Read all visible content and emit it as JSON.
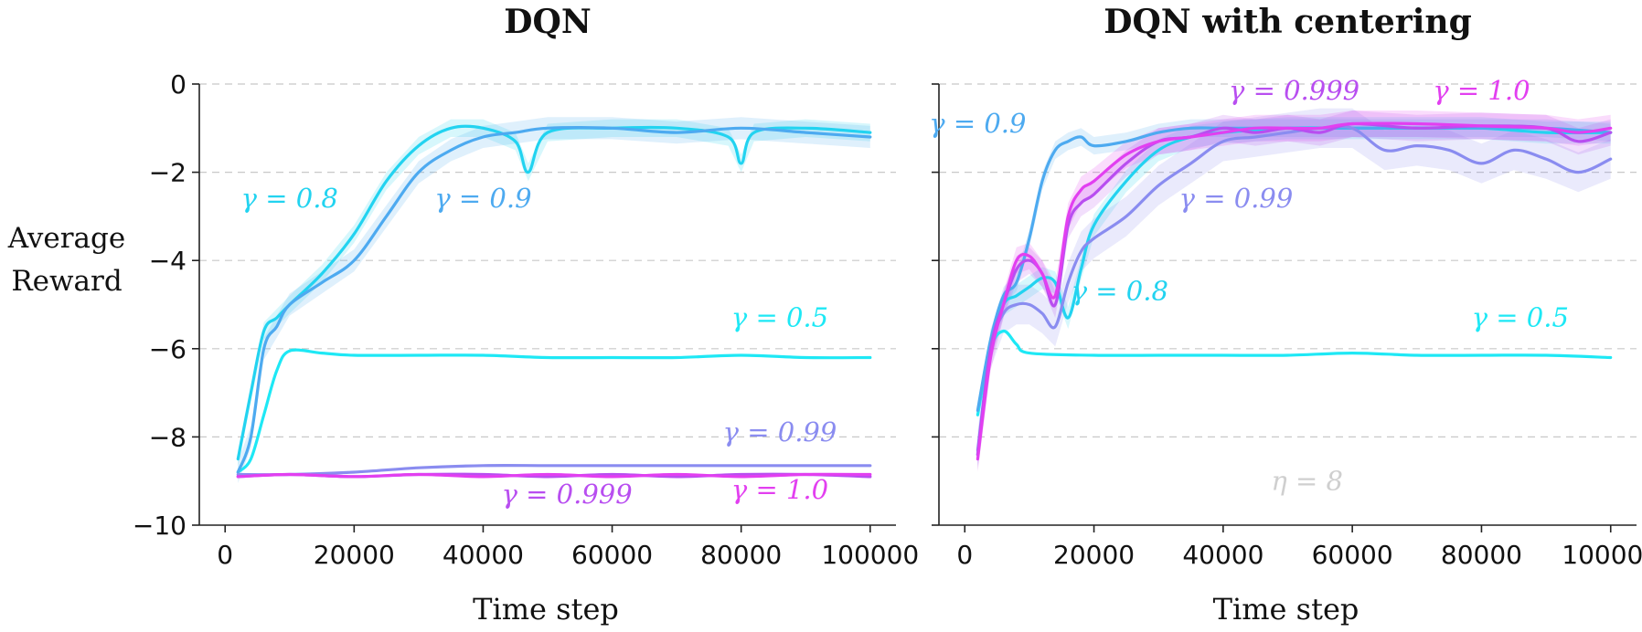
{
  "figure": {
    "ylabel_line1": "Average",
    "ylabel_line2": "Reward"
  },
  "chart_data": [
    {
      "type": "line",
      "title": "DQN",
      "xlabel": "Time step",
      "ylabel": "Average Reward",
      "xlim": [
        -4000,
        104000
      ],
      "ylim": [
        -10,
        0
      ],
      "xticks": [
        0,
        20000,
        40000,
        60000,
        80000,
        100000
      ],
      "xtick_labels": [
        "0",
        "20000",
        "40000",
        "60000",
        "80000",
        "100000"
      ],
      "yticks": [
        0,
        -2,
        -4,
        -6,
        -8,
        -10
      ],
      "ytick_labels": [
        "0",
        "−2",
        "−4",
        "−6",
        "−8",
        "−10"
      ],
      "grid": "horizontal dashed",
      "series": [
        {
          "name": "γ = 0.5",
          "color": "#1ee8f5",
          "x": [
            2000,
            4000,
            6000,
            8000,
            10000,
            15000,
            20000,
            30000,
            40000,
            50000,
            60000,
            70000,
            80000,
            90000,
            100000
          ],
          "y": [
            -8.8,
            -8.5,
            -7.5,
            -6.5,
            -6.05,
            -6.1,
            -6.15,
            -6.15,
            -6.15,
            -6.2,
            -6.2,
            -6.2,
            -6.15,
            -6.2,
            -6.2
          ]
        },
        {
          "name": "γ = 0.8",
          "color": "#22d3f0",
          "x": [
            2000,
            4000,
            6000,
            8000,
            10000,
            15000,
            20000,
            25000,
            30000,
            35000,
            40000,
            45000,
            47000,
            50000,
            60000,
            70000,
            78000,
            80000,
            82000,
            90000,
            100000
          ],
          "y": [
            -8.5,
            -7.0,
            -5.6,
            -5.3,
            -5.0,
            -4.3,
            -3.4,
            -2.2,
            -1.4,
            -1.0,
            -1.0,
            -1.3,
            -2.0,
            -1.1,
            -1.0,
            -1.0,
            -1.2,
            -1.8,
            -1.1,
            -1.0,
            -1.1
          ],
          "band": 0.2
        },
        {
          "name": "γ = 0.9",
          "color": "#4daaf0",
          "x": [
            2000,
            4000,
            6000,
            8000,
            10000,
            15000,
            20000,
            25000,
            30000,
            35000,
            40000,
            45000,
            50000,
            60000,
            70000,
            80000,
            90000,
            100000
          ],
          "y": [
            -8.8,
            -8.0,
            -6.0,
            -5.5,
            -5.0,
            -4.5,
            -4.0,
            -3.0,
            -2.0,
            -1.5,
            -1.2,
            -1.1,
            -1.0,
            -1.0,
            -1.1,
            -1.0,
            -1.1,
            -1.2
          ],
          "band": 0.25
        },
        {
          "name": "γ = 0.99",
          "color": "#8a8cf0",
          "x": [
            2000,
            10000,
            20000,
            30000,
            40000,
            50000,
            60000,
            70000,
            80000,
            90000,
            100000
          ],
          "y": [
            -8.85,
            -8.85,
            -8.8,
            -8.7,
            -8.65,
            -8.65,
            -8.65,
            -8.65,
            -8.65,
            -8.65,
            -8.65
          ]
        },
        {
          "name": "γ = 0.999",
          "color": "#b84ef0",
          "x": [
            2000,
            10000,
            20000,
            30000,
            40000,
            50000,
            60000,
            70000,
            80000,
            90000,
            100000
          ],
          "y": [
            -8.9,
            -8.85,
            -8.9,
            -8.85,
            -8.85,
            -8.9,
            -8.85,
            -8.9,
            -8.85,
            -8.85,
            -8.9
          ]
        },
        {
          "name": "γ = 1.0",
          "color": "#e23ff0",
          "x": [
            2000,
            10000,
            20000,
            30000,
            40000,
            50000,
            60000,
            70000,
            80000,
            90000,
            100000
          ],
          "y": [
            -8.9,
            -8.85,
            -8.9,
            -8.85,
            -8.9,
            -8.85,
            -8.9,
            -8.85,
            -8.9,
            -8.85,
            -8.85
          ]
        }
      ],
      "annotations": [
        {
          "text": "γ = 0.8",
          "color": "#22d3f0",
          "x": 10000,
          "y": -2.8
        },
        {
          "text": "γ = 0.9",
          "color": "#4daaf0",
          "x": 40000,
          "y": -2.8
        },
        {
          "text": "γ = 0.5",
          "color": "#1ee8f5",
          "x": 86000,
          "y": -5.5
        },
        {
          "text": "γ = 0.99",
          "color": "#8a8cf0",
          "x": 86000,
          "y": -8.1
        },
        {
          "text": "γ = 0.999",
          "color": "#b84ef0",
          "x": 53000,
          "y": -9.5
        },
        {
          "text": "γ = 1.0",
          "color": "#e23ff0",
          "x": 86000,
          "y": -9.4
        }
      ]
    },
    {
      "type": "line",
      "title": "DQN with centering",
      "xlabel": "Time step",
      "ylabel": "",
      "xlim": [
        -4000,
        104000
      ],
      "ylim": [
        -10,
        0
      ],
      "xticks": [
        0,
        20000,
        40000,
        60000,
        80000,
        100000
      ],
      "xtick_labels": [
        "0",
        "20000",
        "40000",
        "60000",
        "80000",
        "100000"
      ],
      "yticks": [
        0,
        -2,
        -4,
        -6,
        -8,
        -10
      ],
      "ytick_labels": [
        "",
        "",
        "",
        "",
        "",
        ""
      ],
      "grid": "horizontal dashed",
      "series": [
        {
          "name": "γ = 0.5",
          "color": "#1ee8f5",
          "x": [
            2000,
            4000,
            6000,
            8000,
            10000,
            20000,
            30000,
            40000,
            50000,
            60000,
            70000,
            80000,
            90000,
            100000
          ],
          "y": [
            -7.5,
            -6.0,
            -5.6,
            -5.9,
            -6.1,
            -6.15,
            -6.15,
            -6.15,
            -6.15,
            -6.1,
            -6.15,
            -6.15,
            -6.15,
            -6.2
          ]
        },
        {
          "name": "γ = 0.8",
          "color": "#22d3f0",
          "x": [
            2000,
            4000,
            6000,
            8000,
            10000,
            12000,
            14000,
            16000,
            18000,
            20000,
            25000,
            30000,
            35000,
            40000,
            50000,
            60000,
            70000,
            80000,
            90000,
            100000
          ],
          "y": [
            -8.4,
            -6.0,
            -5.0,
            -4.8,
            -4.6,
            -4.4,
            -4.5,
            -5.3,
            -4.2,
            -3.2,
            -2.2,
            -1.5,
            -1.2,
            -1.1,
            -1.0,
            -1.0,
            -1.0,
            -1.0,
            -1.1,
            -1.1
          ],
          "band": 0.25
        },
        {
          "name": "γ = 0.9",
          "color": "#4daaf0",
          "x": [
            2000,
            4000,
            6000,
            8000,
            10000,
            12000,
            14000,
            16000,
            18000,
            20000,
            25000,
            30000,
            35000,
            40000,
            50000,
            60000,
            70000,
            80000,
            90000,
            100000
          ],
          "y": [
            -7.4,
            -5.8,
            -4.8,
            -4.5,
            -3.5,
            -2.2,
            -1.5,
            -1.3,
            -1.2,
            -1.4,
            -1.3,
            -1.1,
            -1.0,
            -1.0,
            -1.0,
            -1.0,
            -1.0,
            -1.0,
            -1.0,
            -1.1
          ],
          "band": 0.2
        },
        {
          "name": "γ = 0.99",
          "color": "#8a8cf0",
          "x": [
            2000,
            4000,
            6000,
            8000,
            10000,
            12000,
            14000,
            16000,
            18000,
            20000,
            25000,
            30000,
            35000,
            40000,
            45000,
            50000,
            55000,
            60000,
            65000,
            70000,
            75000,
            80000,
            85000,
            90000,
            95000,
            100000
          ],
          "y": [
            -8.3,
            -6.0,
            -5.2,
            -5.0,
            -5.0,
            -5.2,
            -5.5,
            -4.5,
            -3.8,
            -3.5,
            -3.0,
            -2.3,
            -1.8,
            -1.3,
            -1.2,
            -1.1,
            -1.0,
            -1.0,
            -1.5,
            -1.4,
            -1.5,
            -1.8,
            -1.5,
            -1.7,
            -2.0,
            -1.7
          ],
          "band": 0.45
        },
        {
          "name": "γ = 0.999",
          "color": "#b84ef0",
          "x": [
            2000,
            4000,
            6000,
            8000,
            10000,
            12000,
            14000,
            16000,
            18000,
            20000,
            25000,
            30000,
            35000,
            40000,
            45000,
            50000,
            55000,
            60000,
            70000,
            80000,
            90000,
            95000,
            100000
          ],
          "y": [
            -8.4,
            -6.0,
            -5.0,
            -4.2,
            -4.0,
            -4.3,
            -5.0,
            -3.2,
            -2.7,
            -2.5,
            -1.8,
            -1.3,
            -1.2,
            -1.0,
            -1.1,
            -1.0,
            -1.1,
            -0.9,
            -1.0,
            -0.95,
            -1.0,
            -1.3,
            -1.1
          ],
          "band": 0.3
        },
        {
          "name": "γ = 1.0",
          "color": "#e23ff0",
          "x": [
            2000,
            4000,
            6000,
            8000,
            10000,
            12000,
            14000,
            16000,
            18000,
            20000,
            25000,
            30000,
            35000,
            40000,
            45000,
            50000,
            55000,
            60000,
            70000,
            80000,
            90000,
            95000,
            100000
          ],
          "y": [
            -8.5,
            -6.2,
            -5.0,
            -4.0,
            -3.9,
            -4.3,
            -4.8,
            -3.0,
            -2.4,
            -2.2,
            -1.6,
            -1.3,
            -1.2,
            -1.1,
            -1.0,
            -1.0,
            -1.0,
            -0.9,
            -0.9,
            -0.95,
            -1.0,
            -1.1,
            -1.0
          ],
          "band": 0.3
        }
      ],
      "annotations": [
        {
          "text": "γ = 0.9",
          "color": "#4daaf0",
          "x": 2000,
          "y": -1.1
        },
        {
          "text": "γ = 0.999",
          "color": "#b84ef0",
          "x": 51000,
          "y": -0.35
        },
        {
          "text": "γ = 1.0",
          "color": "#e23ff0",
          "x": 80000,
          "y": -0.35
        },
        {
          "text": "γ = 0.99",
          "color": "#8a8cf0",
          "x": 42000,
          "y": -2.8
        },
        {
          "text": "γ = 0.8",
          "color": "#22d3f0",
          "x": 24000,
          "y": -4.9
        },
        {
          "text": "γ = 0.5",
          "color": "#1ee8f5",
          "x": 86000,
          "y": -5.5
        },
        {
          "text": "η = 8",
          "color": "#cfcfcf",
          "x": 53000,
          "y": -9.2
        }
      ]
    }
  ]
}
